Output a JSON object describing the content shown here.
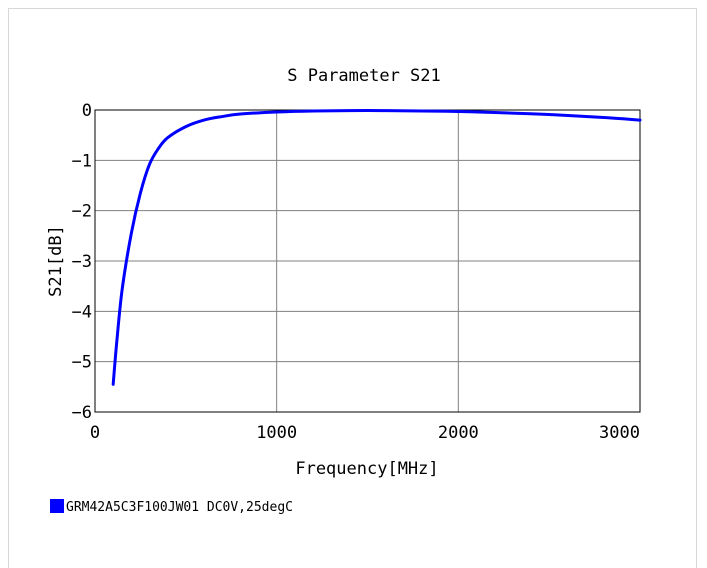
{
  "chart_data": {
    "type": "line",
    "title": "S Parameter S21",
    "xlabel": "Frequency[MHz]",
    "ylabel": "S21[dB]",
    "xlim": [
      0,
      3000
    ],
    "ylim": [
      -6,
      0
    ],
    "x_ticks": [
      "0",
      "1000",
      "2000",
      "3000"
    ],
    "y_ticks": [
      "0",
      "−1",
      "−2",
      "−3",
      "−4",
      "−5",
      "−6"
    ],
    "grid": true,
    "legend_position": "bottom-left",
    "series": [
      {
        "name": "GRM42A5C3F100JW01 DC0V,25degC",
        "color": "#0000ff",
        "x": [
          100,
          120,
          150,
          200,
          250,
          300,
          350,
          400,
          500,
          600,
          700,
          800,
          1000,
          1200,
          1500,
          1800,
          2000,
          2200,
          2500,
          2800,
          3000
        ],
        "y": [
          -5.45,
          -4.6,
          -3.55,
          -2.45,
          -1.65,
          -1.08,
          -0.76,
          -0.55,
          -0.33,
          -0.2,
          -0.13,
          -0.08,
          -0.04,
          -0.02,
          -0.01,
          -0.02,
          -0.03,
          -0.05,
          -0.09,
          -0.15,
          -0.2
        ]
      }
    ]
  }
}
